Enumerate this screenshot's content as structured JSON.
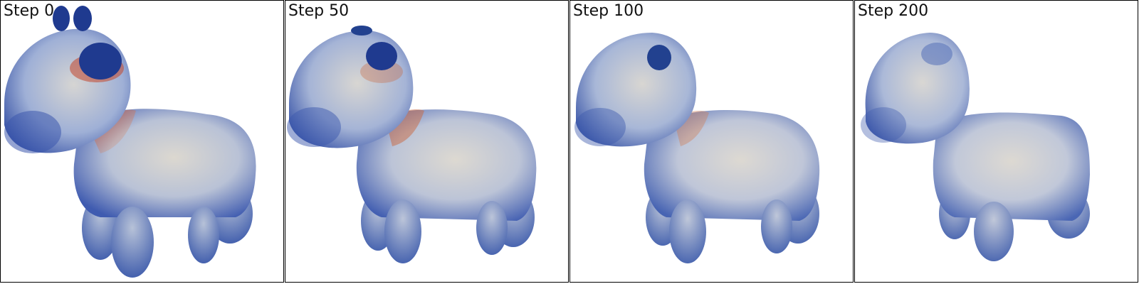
{
  "figure": {
    "panels": [
      {
        "label": "Step 0",
        "step": 0,
        "ears": "prominent",
        "neck_red": "strong"
      },
      {
        "label": "Step 50",
        "step": 50,
        "ears": "reduced",
        "neck_red": "moderate"
      },
      {
        "label": "Step 100",
        "step": 100,
        "ears": "small",
        "neck_red": "faint"
      },
      {
        "label": "Step 200",
        "step": 200,
        "ears": "absorbed",
        "neck_red": "none"
      }
    ],
    "colors": {
      "border": "#000000",
      "mesh_blue": "#3a55a8",
      "mesh_light": "#d9d6cf",
      "mesh_red": "#c2462a",
      "ear_blue": "#1f3a8f"
    }
  }
}
